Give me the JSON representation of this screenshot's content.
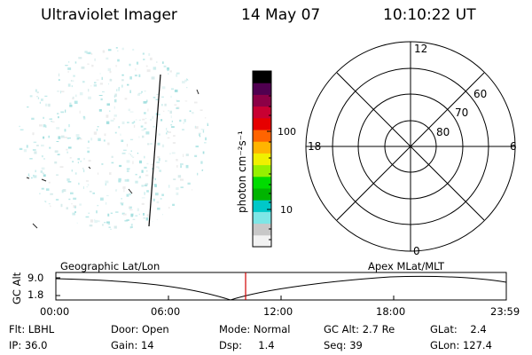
{
  "header": {
    "instrument": "Ultraviolet Imager",
    "date": "14 May 07",
    "time": "10:10:22 UT"
  },
  "colorbar": {
    "label": "photon cm⁻²s⁻¹",
    "ticks": [
      "100",
      "10"
    ],
    "colors": [
      "#f2f2f2",
      "#c8c8c8",
      "#7ee6e6",
      "#00c8c8",
      "#00b400",
      "#00dc00",
      "#96f000",
      "#f0f000",
      "#ffb400",
      "#ff6400",
      "#e60000",
      "#c80032",
      "#8c0046",
      "#500050",
      "#000000"
    ]
  },
  "polar_plot": {
    "mlt_labels": {
      "top": "12",
      "left": "18",
      "right": "6",
      "bottom": "0"
    },
    "lat_labels": [
      "60",
      "70",
      "80"
    ]
  },
  "timeline": {
    "axis_title": "GC Alt",
    "left_label": "Geographic Lat/Lon",
    "right_label": "Apex MLat/MLT",
    "y_ticks": [
      "9.0",
      "1.8"
    ],
    "x_ticks": [
      "00:00",
      "06:00",
      "12:00",
      "18:00",
      "23:59"
    ],
    "cursor_color": "#d00000"
  },
  "info": {
    "filter": "Flt: LBHL",
    "door": "Door: Open",
    "mode": "Mode: Normal",
    "gc_alt": "GC Alt: 2.7 Re",
    "glat": "GLat:    2.4",
    "ip": "IP: 36.0",
    "gain": "Gain: 14",
    "dsp": "Dsp:     1.4",
    "seq": "Seq: 39",
    "glon": "GLon: 127.4"
  }
}
